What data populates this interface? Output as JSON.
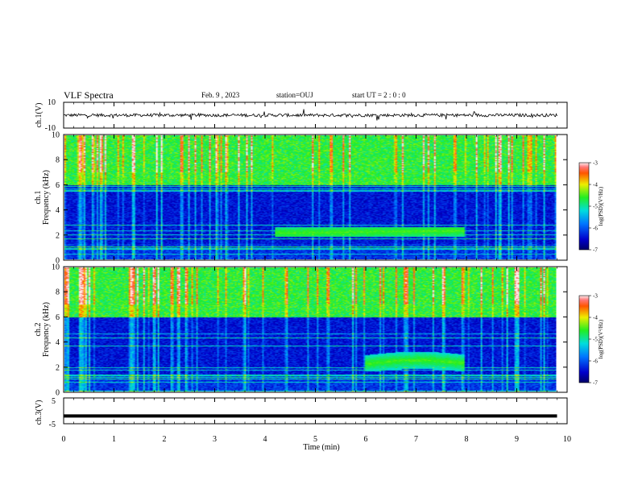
{
  "header": {
    "title": "VLF Spectra",
    "date": "Feb. 9 , 2023",
    "station": "station=OUJ",
    "start_ut": "start UT = 2 : 0 : 0"
  },
  "chart_data": [
    {
      "type": "line",
      "panel": "ch1-waveform",
      "ylabel": "ch.1(V)",
      "ylim": [
        -10,
        10
      ],
      "yticks": [
        "10",
        "-10"
      ],
      "x": [
        0,
        10
      ],
      "baseline": 0,
      "noise_amplitude": 1.2
    },
    {
      "type": "heatmap",
      "panel": "ch1-spectrogram",
      "ylabel": "ch.1 Frequency (kHz)",
      "ylabel_line1": "ch.1",
      "ylabel_line2": "Frequency (kHz)",
      "ylim": [
        0,
        10
      ],
      "yticks": [
        "0",
        "2",
        "4",
        "6",
        "8",
        "10"
      ],
      "xlim": [
        0,
        10
      ],
      "data_extent_min": 9.8,
      "colorbar": {
        "label": "log(PSD)(V²/Hz)",
        "ticks": [
          "-3",
          "-4",
          "-5",
          "-6",
          "-7"
        ],
        "range": [
          -7,
          -3
        ]
      },
      "features": {
        "background_band_top_khz": 6.0,
        "emission_band_khz": [
          1.8,
          2.6
        ],
        "emission_time_min": [
          4.2,
          8.0
        ]
      }
    },
    {
      "type": "heatmap",
      "panel": "ch2-spectrogram",
      "ylabel": "ch.2 Frequency (kHz)",
      "ylabel_line1": "ch.2",
      "ylabel_line2": "Frequency (kHz)",
      "ylim": [
        0,
        10
      ],
      "yticks": [
        "0",
        "2",
        "4",
        "6",
        "8",
        "10"
      ],
      "xlim": [
        0,
        10
      ],
      "data_extent_min": 9.8,
      "colorbar": {
        "label": "log(PSD)(V²/Hz)",
        "ticks": [
          "-3",
          "-4",
          "-5",
          "-6",
          "-7"
        ],
        "range": [
          -7,
          -3
        ]
      },
      "features": {
        "background_band_top_khz": 6.0,
        "emission_band_khz": [
          1.6,
          3.2
        ],
        "emission_time_min": [
          6.0,
          8.0
        ]
      }
    },
    {
      "type": "line",
      "panel": "ch3-waveform",
      "ylabel": "ch.3(V)",
      "ylim": [
        -5,
        5
      ],
      "yticks": [
        "5",
        "-5"
      ],
      "x": [
        0,
        9.8
      ],
      "baseline": -2
    },
    {
      "type": "axis",
      "panel": "time-axis",
      "xlabel": "Time (min)",
      "xlim": [
        0,
        10
      ],
      "xticks": [
        "0",
        "1",
        "2",
        "3",
        "4",
        "5",
        "6",
        "7",
        "8",
        "9",
        "10"
      ]
    }
  ]
}
